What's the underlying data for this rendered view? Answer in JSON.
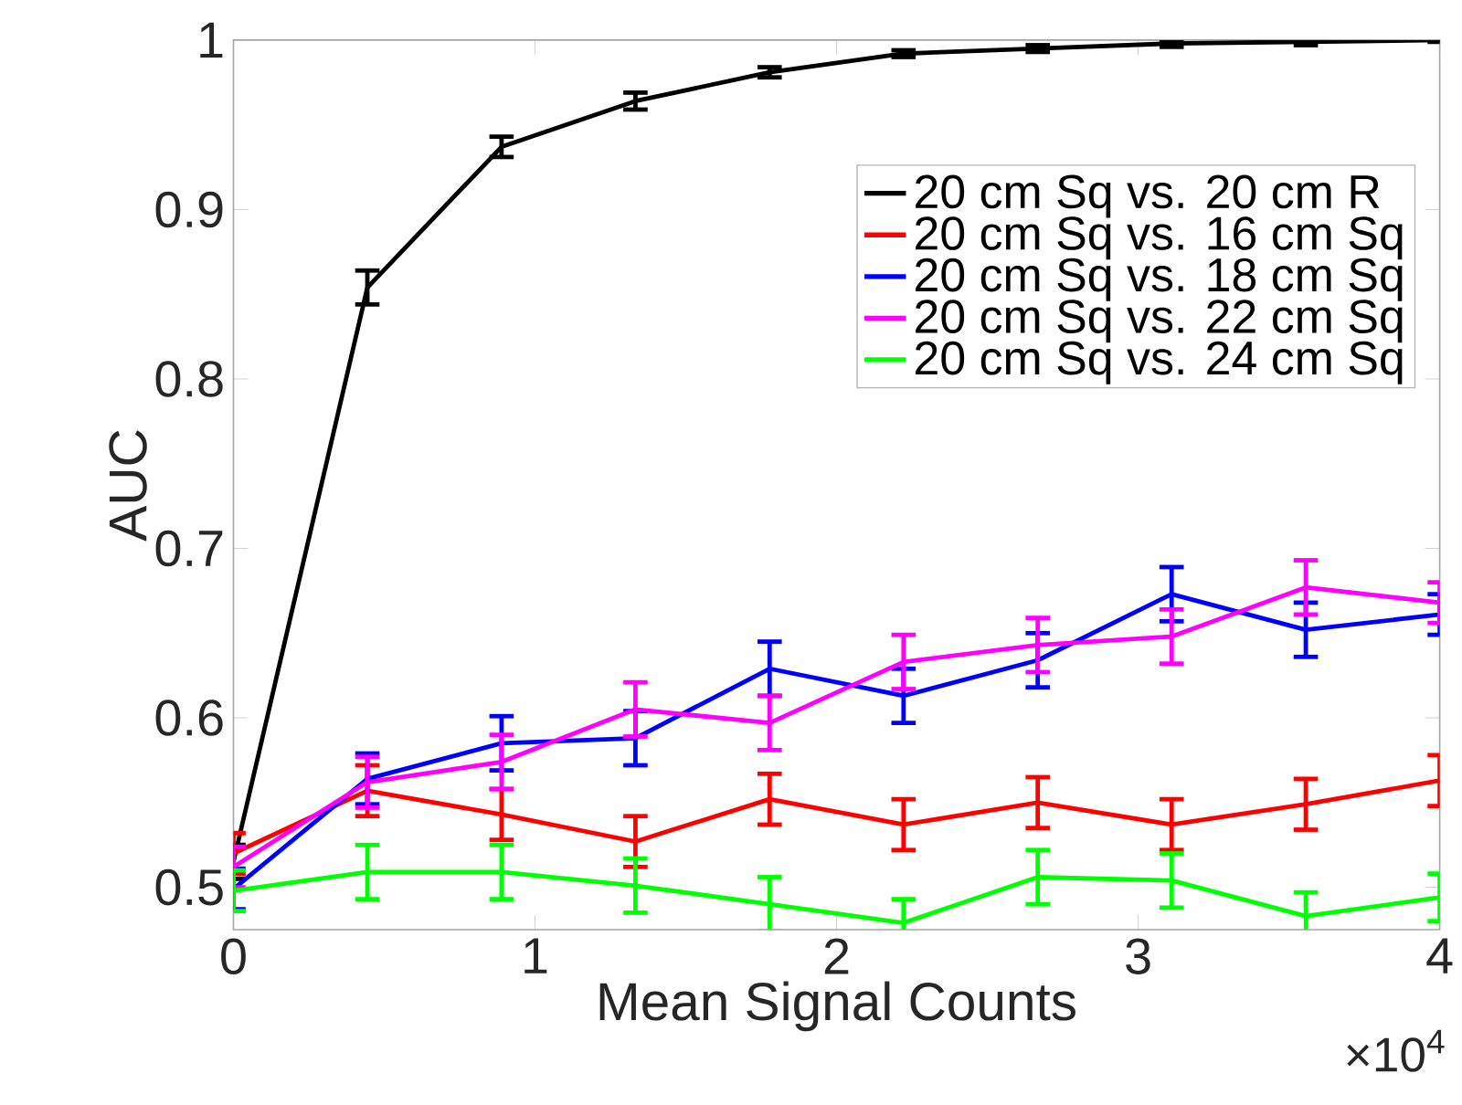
{
  "chart_data": {
    "type": "line",
    "xlabel": "Mean Signal Counts",
    "ylabel": "AUC",
    "x": [
      0,
      0.444,
      0.889,
      1.333,
      1.778,
      2.222,
      2.667,
      3.111,
      3.556,
      4
    ],
    "xlim": [
      0,
      4
    ],
    "xticks": [
      0,
      1,
      2,
      3,
      4
    ],
    "ylim": [
      0.475,
      1
    ],
    "yticks": [
      0.5,
      0.6,
      0.7,
      0.8,
      0.9,
      1
    ],
    "legend": "top right",
    "grid": false,
    "marker": "none",
    "line_style": "solid",
    "annotations": [
      "×10$^{4}$"
    ],
    "series": [
      {
        "name": "20 cm Sq vs. 20 cm R",
        "color": "#000000",
        "values": [
          0.515,
          0.854,
          0.937,
          0.964,
          0.981,
          0.992,
          0.995,
          0.998,
          0.999,
          1.0
        ],
        "errors": [
          0.01,
          0.01,
          0.006,
          0.005,
          0.003,
          0.002,
          0.002,
          0.002,
          0.002,
          0.001
        ]
      },
      {
        "name": "20 cm Sq vs. 16 cm Sq",
        "color": "#ff0000",
        "values": [
          0.52,
          0.557,
          0.543,
          0.527,
          0.552,
          0.537,
          0.55,
          0.537,
          0.549,
          0.563
        ],
        "errors": [
          0.012,
          0.015,
          0.015,
          0.015,
          0.015,
          0.015,
          0.015,
          0.015,
          0.015,
          0.015
        ]
      },
      {
        "name": "20 cm Sq vs. 18 cm Sq",
        "color": "#0000ff",
        "values": [
          0.499,
          0.564,
          0.585,
          0.588,
          0.629,
          0.613,
          0.634,
          0.673,
          0.652,
          0.661
        ],
        "errors": [
          0.012,
          0.015,
          0.016,
          0.016,
          0.016,
          0.016,
          0.016,
          0.016,
          0.016,
          0.012
        ]
      },
      {
        "name": "20 cm Sq vs. 22 cm Sq",
        "color": "#ff00ff",
        "values": [
          0.512,
          0.562,
          0.574,
          0.605,
          0.597,
          0.633,
          0.643,
          0.648,
          0.677,
          0.668
        ],
        "errors": [
          0.012,
          0.015,
          0.016,
          0.016,
          0.016,
          0.016,
          0.016,
          0.016,
          0.016,
          0.012
        ]
      },
      {
        "name": "20 cm Sq vs. 24 cm Sq",
        "color": "#00ff00",
        "values": [
          0.498,
          0.509,
          0.509,
          0.501,
          0.49,
          0.479,
          0.506,
          0.504,
          0.483,
          0.494
        ],
        "errors": [
          0.012,
          0.016,
          0.016,
          0.016,
          0.016,
          0.014,
          0.016,
          0.016,
          0.014,
          0.014
        ]
      }
    ]
  }
}
